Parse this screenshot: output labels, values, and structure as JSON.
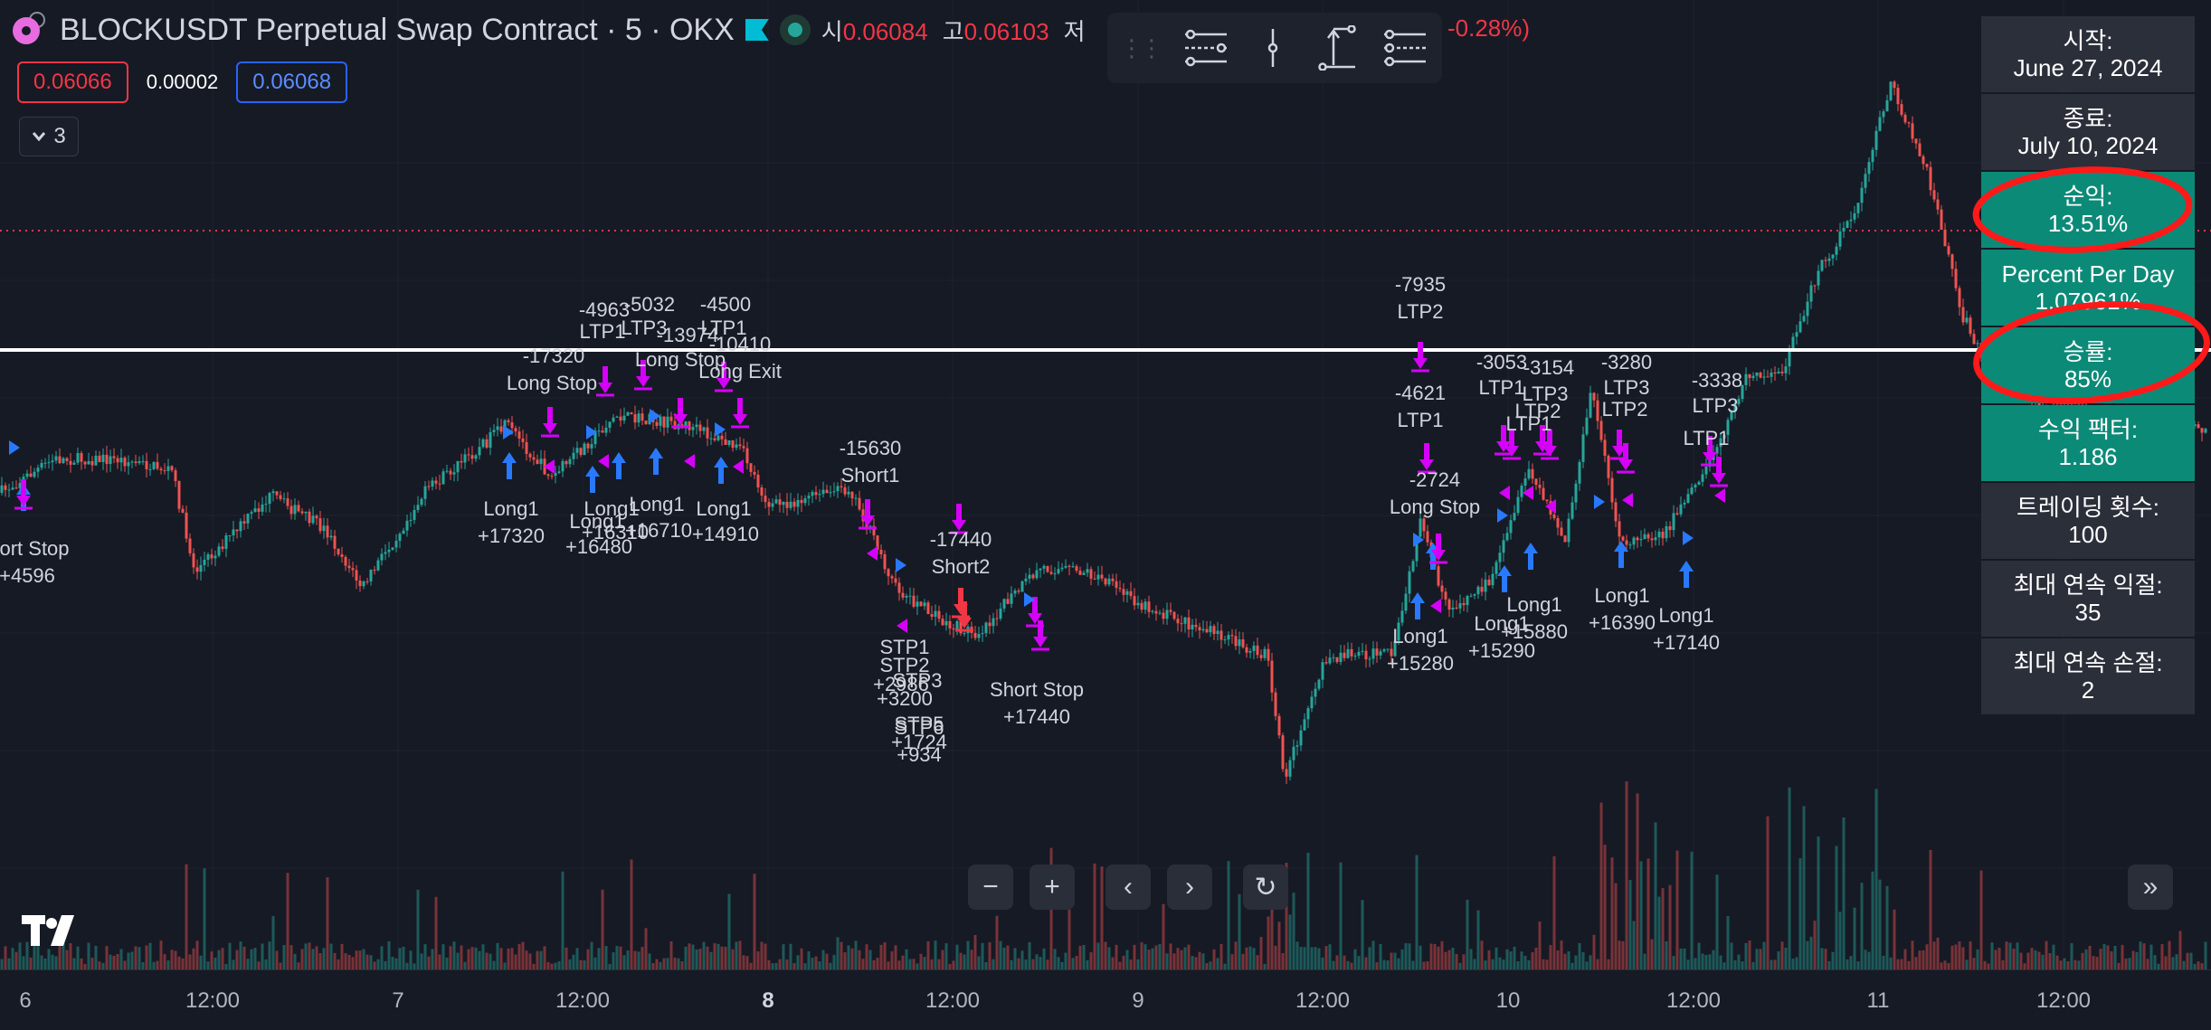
{
  "header": {
    "title": "BLOCKUSDT Perpetual Swap Contract · 5 · OKX",
    "open_label": "시",
    "open_value": "0.06084",
    "high_label": "고",
    "high_value": "0.06103",
    "low_label": "저",
    "change": "-0.28%)"
  },
  "price_boxes": {
    "sell": "0.06066",
    "spread": "0.00002",
    "buy": "0.06068"
  },
  "indicator_toggle": {
    "count": "3"
  },
  "stats": {
    "start_label": "시작:",
    "start_value": "June 27, 2024",
    "end_label": "종료:",
    "end_value": "July 10, 2024",
    "net_label": "순익:",
    "net_value": "13.51%",
    "ppd_label": "Percent Per Day",
    "ppd_value": "1.07961%",
    "winrate_label": "승률:",
    "winrate_value": "85%",
    "pf_label": "수익 팩터:",
    "pf_value": "1.186",
    "trades_label": "트레이딩 횟수:",
    "trades_value": "100",
    "maxwin_label": "최대 연속 익절:",
    "maxwin_value": "35",
    "maxloss_label": "최대 연속 손절:",
    "maxloss_value": "2"
  },
  "time_axis": [
    "6",
    "12:00",
    "7",
    "12:00",
    "8",
    "12:00",
    "9",
    "12:00",
    "10",
    "12:00",
    "11",
    "12:00"
  ],
  "trade_labels": [
    {
      "text": "ort Stop",
      "t": 0.02
    },
    {
      "text": "+4596",
      "t": 0.02
    },
    {
      "text": "-17320",
      "t": 0.61
    },
    {
      "text": "Long Stop",
      "t": 0.61
    },
    {
      "text": "Long1",
      "t": 0.56
    },
    {
      "text": "+17320",
      "t": 0.56
    },
    {
      "text": "-4963",
      "t": 0.67
    },
    {
      "text": "LTP1",
      "t": 0.67
    },
    {
      "text": "-5032",
      "t": 0.71
    },
    {
      "text": "LTP3",
      "t": 0.71
    },
    {
      "text": "-13974",
      "t": 0.75
    },
    {
      "text": "Long Stop",
      "t": 0.75
    },
    {
      "text": "-4500",
      "t": 0.8
    },
    {
      "text": "LTP1",
      "t": 0.8
    },
    {
      "text": "-10410",
      "t": 0.82
    },
    {
      "text": "Long Exit",
      "t": 0.82
    },
    {
      "text": "Long1",
      "t": 0.66
    },
    {
      "text": "+16480",
      "t": 0.66
    },
    {
      "text": "Long1",
      "t": 0.68
    },
    {
      "text": "+16310",
      "t": 0.68
    },
    {
      "text": "Long1",
      "t": 0.73
    },
    {
      "text": "+16710",
      "t": 0.73
    },
    {
      "text": "Long1",
      "t": 0.8
    },
    {
      "text": "+14910",
      "t": 0.8
    },
    {
      "text": "-15630",
      "t": 0.96
    },
    {
      "text": "Short1",
      "t": 0.96
    },
    {
      "text": "-17440",
      "t": 1.06
    },
    {
      "text": "Short2",
      "t": 1.06
    },
    {
      "text": "STP1",
      "t": 1.0
    },
    {
      "text": "STP2",
      "t": 1.0
    },
    {
      "text": "+2986",
      "t": 1.0
    },
    {
      "text": "STP3",
      "t": 1.0
    },
    {
      "text": "+3200",
      "t": 1.0
    },
    {
      "text": "STP5",
      "t": 1.0
    },
    {
      "text": "STP6",
      "t": 1.0
    },
    {
      "text": "+1724",
      "t": 1.0
    },
    {
      "text": "+934",
      "t": 1.0
    },
    {
      "text": "Short Stop",
      "t": 1.14
    },
    {
      "text": "+17440",
      "t": 1.14
    },
    {
      "text": "-7935",
      "t": 1.57
    },
    {
      "text": "LTP2",
      "t": 1.57
    },
    {
      "text": "-4621",
      "t": 1.57
    },
    {
      "text": "LTP1",
      "t": 1.57
    },
    {
      "text": "-2724",
      "t": 1.59
    },
    {
      "text": "Long Stop",
      "t": 1.59
    },
    {
      "text": "Long1",
      "t": 1.57
    },
    {
      "text": "+15280",
      "t": 1.57
    },
    {
      "text": "-3053",
      "t": 1.67
    },
    {
      "text": "-3154",
      "t": 1.71
    },
    {
      "text": "LTP3",
      "t": 1.7
    },
    {
      "text": "LTP1",
      "t": 1.66
    },
    {
      "text": "LTP2",
      "t": 1.7
    },
    {
      "text": "LTP1",
      "t": 1.69
    },
    {
      "text": "Long1",
      "t": 1.66
    },
    {
      "text": "+15290",
      "t": 1.66
    },
    {
      "text": "Long1",
      "t": 1.69
    },
    {
      "text": "+15880",
      "t": 1.69
    },
    {
      "text": "-3280",
      "t": 1.8
    },
    {
      "text": "LTP3",
      "t": 1.8
    },
    {
      "text": "LTP2",
      "t": 1.8
    },
    {
      "text": "Long1",
      "t": 1.79
    },
    {
      "text": "+16390",
      "t": 1.79
    },
    {
      "text": "-3338",
      "t": 1.89
    },
    {
      "text": "LTP3",
      "t": 1.89
    },
    {
      "text": "LTP1",
      "t": 1.89
    },
    {
      "text": "Long1",
      "t": 1.86
    },
    {
      "text": "+17140",
      "t": 1.86
    }
  ],
  "colors": {
    "background": "#161a25",
    "up": "#26a69a",
    "down": "#ef5350",
    "long_arrow": "#2979ff",
    "exit_arrow": "#d500f9",
    "short_arrow": "#f23645",
    "stats_green": "#0c8a78",
    "stats_gray": "#2b2f3a",
    "annotation": "#ff1a1a"
  }
}
